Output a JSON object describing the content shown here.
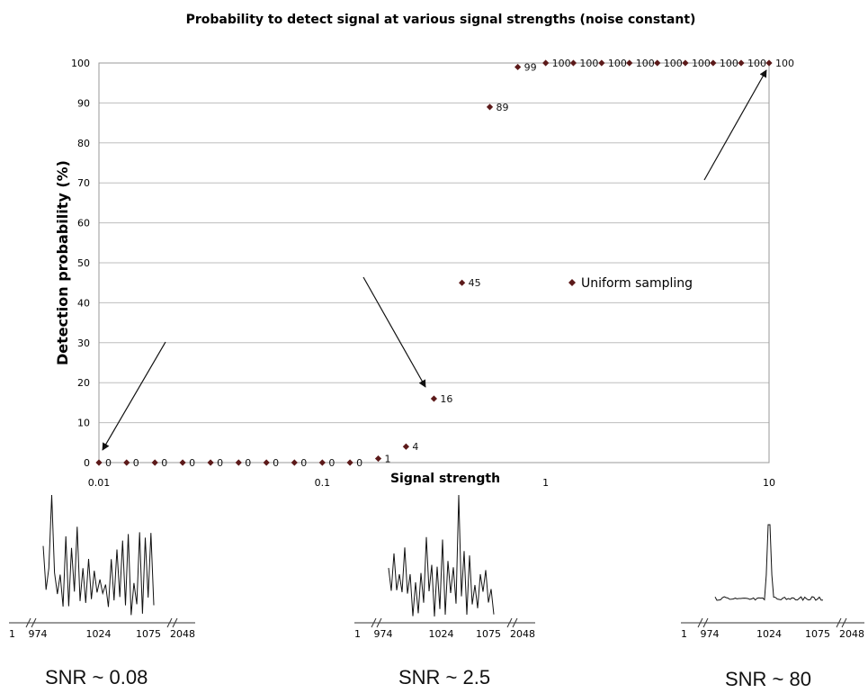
{
  "chart_data": {
    "type": "scatter",
    "title": "Probability to detect signal at various signal strengths (noise constant)",
    "xlabel": "Signal strength",
    "ylabel": "Detection probability (%)",
    "x_scale": "log",
    "xlim": [
      0.01,
      10
    ],
    "ylim": [
      0,
      100
    ],
    "x_ticks": [
      "0.01",
      "0.1",
      "1",
      "10"
    ],
    "y_ticks": [
      "0",
      "10",
      "20",
      "30",
      "40",
      "50",
      "60",
      "70",
      "80",
      "90",
      "100"
    ],
    "grid": "horizontal",
    "legend_placement": "inside-right",
    "series": [
      {
        "name": "Uniform sampling",
        "color": "#5c1a1a",
        "x": [
          0.01,
          0.0133,
          0.0178,
          0.0237,
          0.0316,
          0.0422,
          0.0562,
          0.075,
          0.1,
          0.133,
          0.178,
          0.237,
          0.316,
          0.422,
          0.562,
          0.75,
          1.0,
          1.33,
          1.78,
          2.37,
          3.16,
          4.22,
          5.62,
          7.5,
          10.0
        ],
        "y": [
          0,
          0,
          0,
          0,
          0,
          0,
          0,
          0,
          0,
          0,
          1,
          4,
          16,
          45,
          89,
          99,
          100,
          100,
          100,
          100,
          100,
          100,
          100,
          100,
          100
        ],
        "labels": [
          "0",
          "0",
          "0",
          "0",
          "0",
          "0",
          "0",
          "0",
          "0",
          "0",
          "1",
          "4",
          "16",
          "45",
          "89",
          "99",
          "100",
          "100",
          "100",
          "100",
          "100",
          "100",
          "100",
          "100",
          "100"
        ]
      }
    ]
  },
  "spectra": [
    {
      "ticks": [
        "1",
        "974",
        "1024",
        "1075",
        "2048"
      ],
      "snr_label": "SNR ~ 0.08",
      "noise_level": 1,
      "peak_level": 1.3
    },
    {
      "ticks": [
        "1",
        "974",
        "1024",
        "1075",
        "2048"
      ],
      "snr_label": "SNR ~ 2.5",
      "noise_level": 1,
      "peak_level": 2.0
    },
    {
      "ticks": [
        "1",
        "974",
        "1024",
        "1075",
        "2048"
      ],
      "snr_label": "SNR ~ 80",
      "noise_level": 0.06,
      "peak_level": 1.0
    }
  ]
}
